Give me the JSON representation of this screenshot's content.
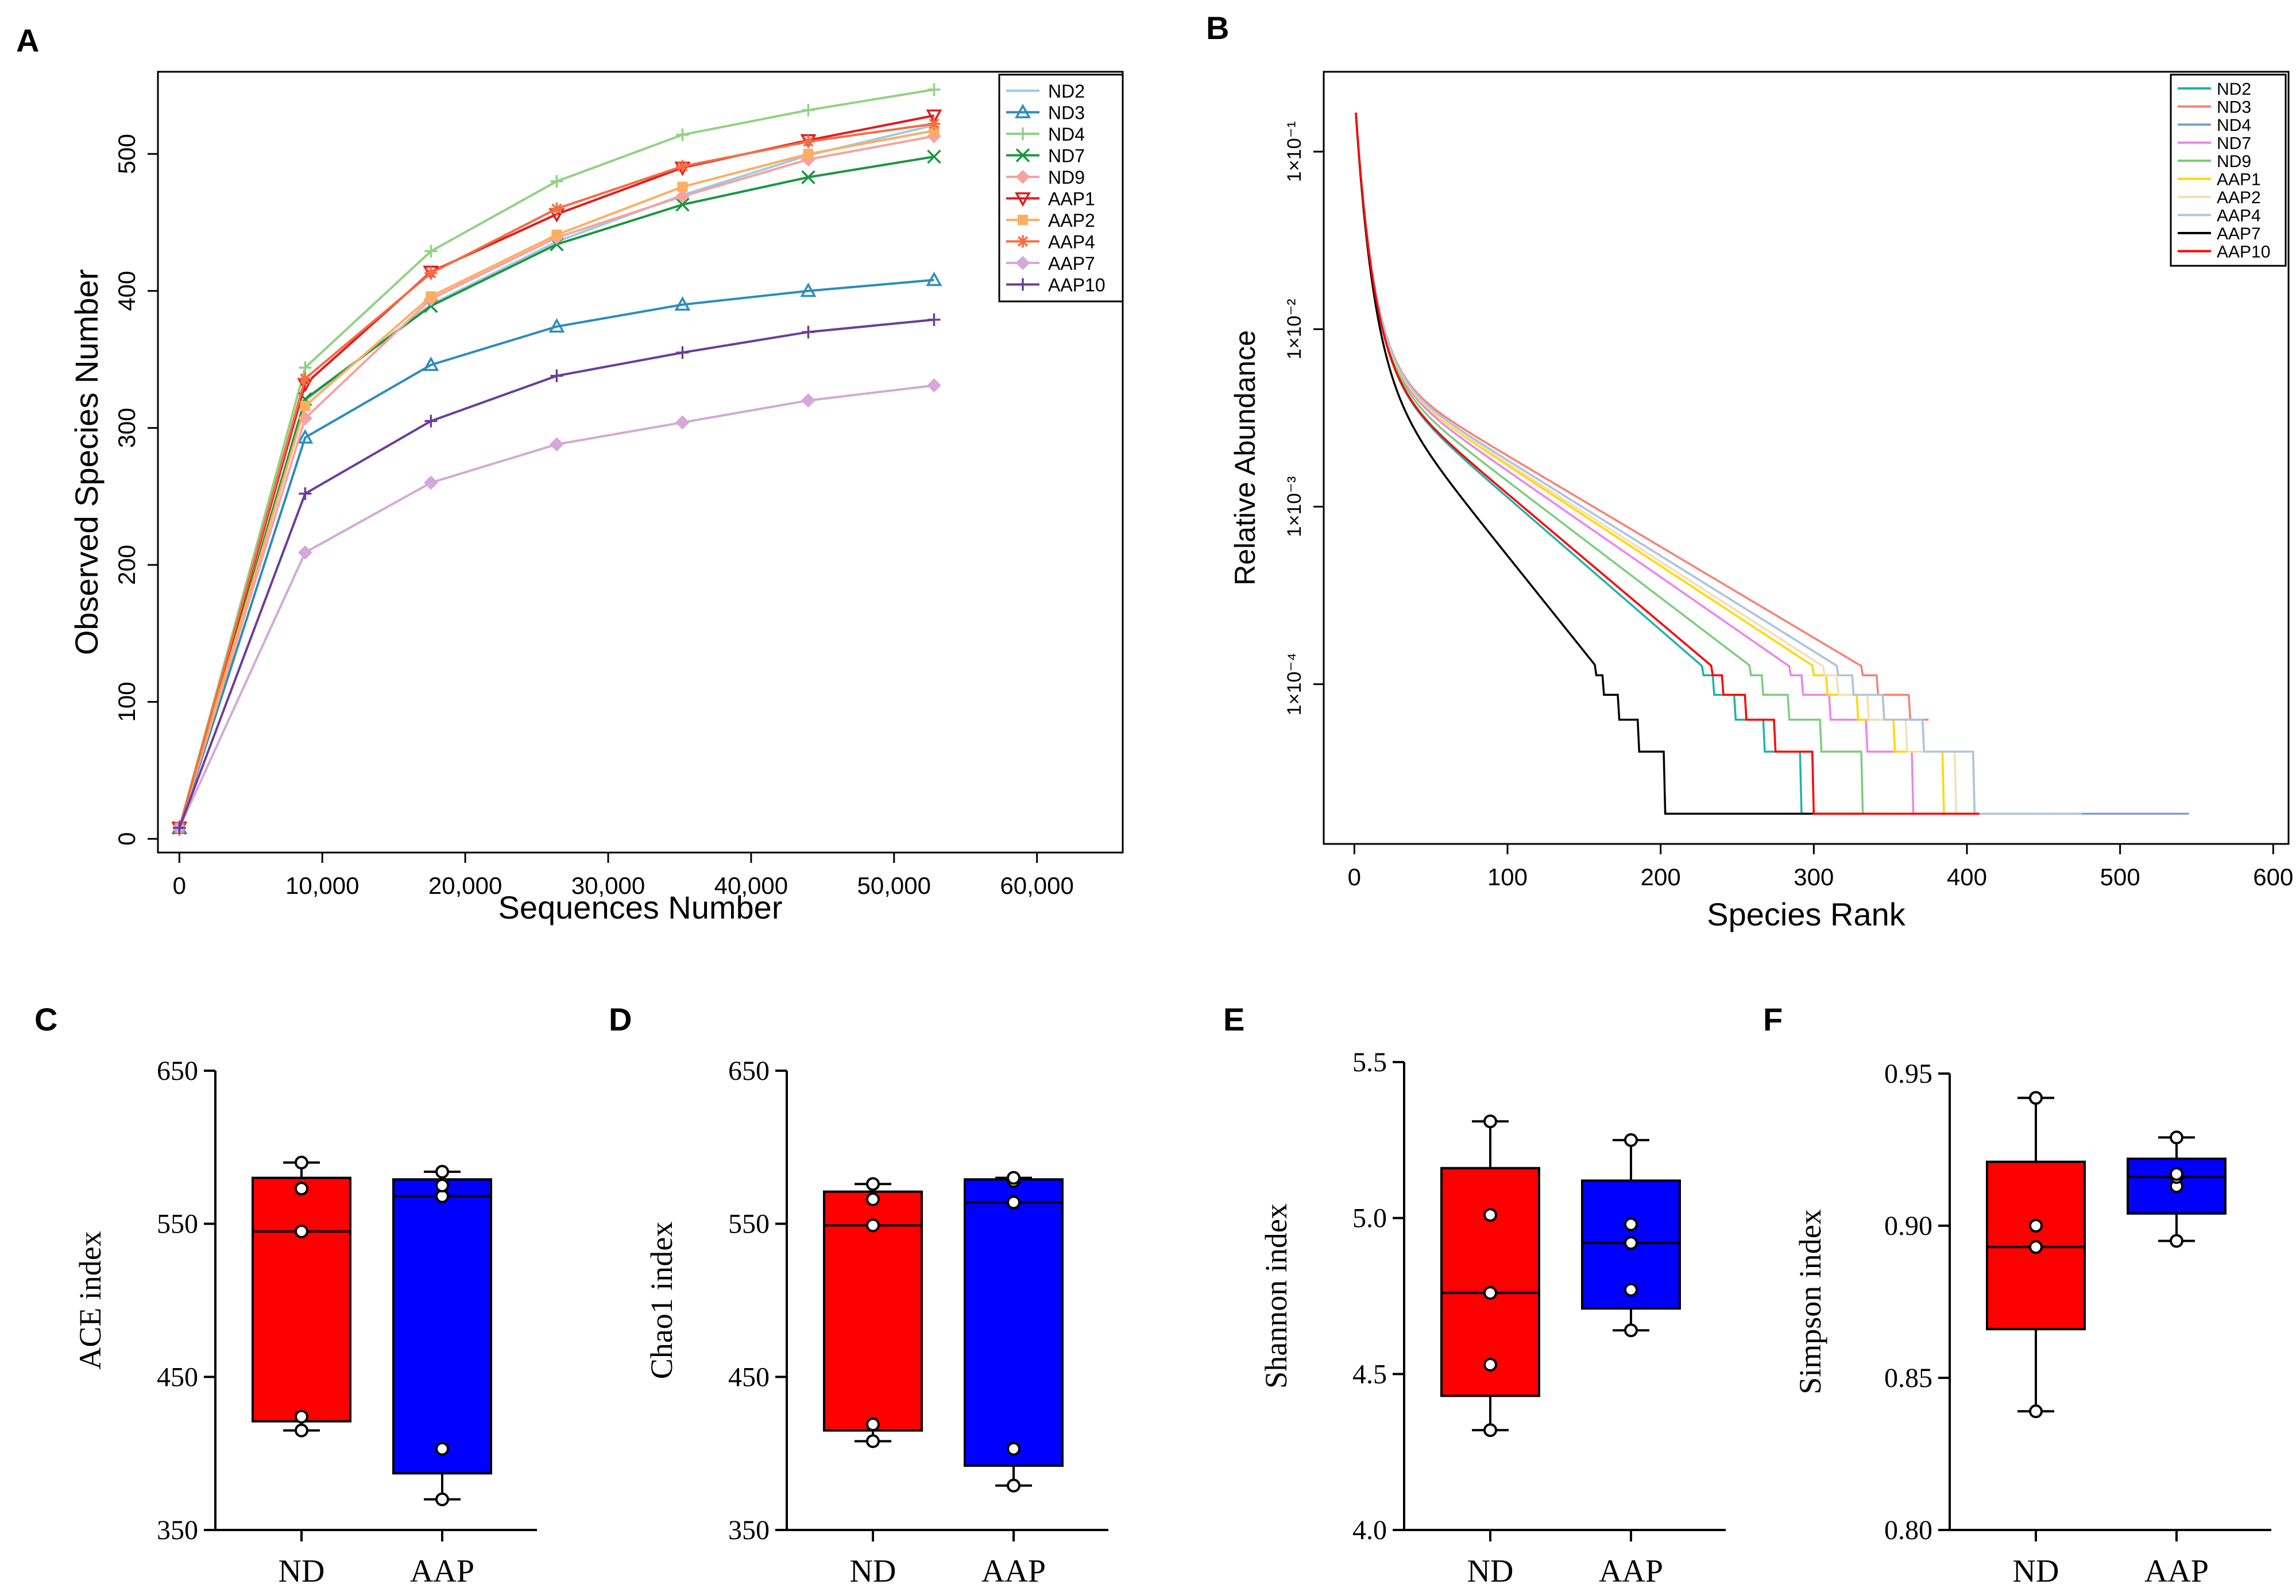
{
  "chart_data": [
    {
      "panel": "A",
      "type": "line",
      "xlabel": "Sequences Number",
      "ylabel": "Observed Species Number",
      "xlim": [
        -1500,
        66000
      ],
      "ylim": [
        -10,
        560
      ],
      "xticks": [
        0,
        10000,
        20000,
        30000,
        40000,
        50000,
        60000
      ],
      "xtick_labels": [
        "0",
        "10,000",
        "20,000",
        "30,000",
        "40,000",
        "50,000",
        "60,000"
      ],
      "yticks": [
        0,
        100,
        200,
        300,
        400,
        500
      ],
      "ytick_labels": [
        "0",
        "100",
        "200",
        "300",
        "400",
        "500"
      ],
      "x": [
        0,
        8800,
        17600,
        26400,
        35200,
        44000,
        52800
      ],
      "series": [
        {
          "name": "ND2",
          "color": "#9ecae1",
          "marker": "none",
          "values": [
            8,
            320,
            390,
            436,
            470,
            499,
            521
          ]
        },
        {
          "name": "ND3",
          "color": "#2b8cbe",
          "marker": "triangle",
          "values": [
            8,
            293,
            346,
            374,
            390,
            400,
            408
          ]
        },
        {
          "name": "ND4",
          "color": "#90d283",
          "marker": "plus",
          "values": [
            8,
            344,
            429,
            480,
            514,
            532,
            547
          ]
        },
        {
          "name": "ND7",
          "color": "#1a9641",
          "marker": "x",
          "values": [
            8,
            321,
            389,
            434,
            463,
            483,
            498
          ]
        },
        {
          "name": "ND9",
          "color": "#f4a3a3",
          "marker": "diamond",
          "values": [
            8,
            307,
            394,
            439,
            469,
            496,
            513
          ]
        },
        {
          "name": "AAP1",
          "color": "#e31a1c",
          "marker": "triangle-down",
          "values": [
            8,
            332,
            414,
            456,
            490,
            510,
            528
          ]
        },
        {
          "name": "AAP2",
          "color": "#fdae61",
          "marker": "square",
          "values": [
            8,
            316,
            396,
            441,
            476,
            500,
            517
          ]
        },
        {
          "name": "AAP4",
          "color": "#f46d43",
          "marker": "star",
          "values": [
            8,
            336,
            413,
            460,
            491,
            509,
            522
          ]
        },
        {
          "name": "AAP7",
          "color": "#d4a8d8",
          "marker": "diamond",
          "values": [
            8,
            209,
            260,
            288,
            304,
            320,
            331
          ]
        },
        {
          "name": "AAP10",
          "color": "#6a3d9a",
          "marker": "plus",
          "values": [
            8,
            252,
            305,
            338,
            355,
            370,
            379
          ]
        }
      ]
    },
    {
      "panel": "B",
      "type": "line",
      "xlabel": "Species Rank",
      "ylabel": "Relative Abundance",
      "yscale": "log",
      "xlim": [
        -20,
        610
      ],
      "ylim_log10": [
        -4.9,
        -0.55
      ],
      "xticks": [
        0,
        100,
        200,
        300,
        400,
        500,
        600
      ],
      "xtick_labels": [
        "0",
        "100",
        "200",
        "300",
        "400",
        "500",
        "600"
      ],
      "yticks_log10": [
        -1,
        -2,
        -3,
        -4
      ],
      "ytick_labels": [
        "1×10⁻¹",
        "1×10⁻²",
        "1×10⁻³",
        "1×10⁻⁴"
      ],
      "series": [
        {
          "name": "ND2",
          "color": "#20b2aa",
          "max_rank": 330,
          "k": 0.72
        },
        {
          "name": "ND3",
          "color": "#fa8072",
          "max_rank": 375,
          "k": 1.05
        },
        {
          "name": "ND4",
          "color": "#7b9fd4",
          "max_rank": 545,
          "k": 1.0
        },
        {
          "name": "ND7",
          "color": "#ee82ee",
          "max_rank": 423,
          "k": 0.9
        },
        {
          "name": "ND9",
          "color": "#7ccd7c",
          "max_rank": 350,
          "k": 0.82
        },
        {
          "name": "AAP1",
          "color": "#ffd700",
          "max_rank": 447,
          "k": 0.95
        },
        {
          "name": "AAP2",
          "color": "#f5deb3",
          "max_rank": 470,
          "k": 0.97
        },
        {
          "name": "AAP4",
          "color": "#b0c4de",
          "max_rank": 475,
          "k": 1.0
        },
        {
          "name": "AAP7",
          "color": "#000000",
          "max_rank": 330,
          "k": 0.5
        },
        {
          "name": "AAP10",
          "color": "#ff0000",
          "max_rank": 408,
          "k": 0.74
        }
      ]
    },
    {
      "panel": "C",
      "type": "box",
      "ylabel": "ACE index",
      "ylim": [
        350,
        650
      ],
      "yticks": [
        350,
        450,
        550,
        650
      ],
      "ytick_labels": [
        "350",
        "450",
        "550",
        "650"
      ],
      "categories": [
        "ND",
        "AAP"
      ],
      "colors": [
        "#ff0000",
        "#0000ff"
      ],
      "boxes": [
        {
          "min": 415,
          "q1": 421,
          "median": 545,
          "q3": 580,
          "max": 590,
          "points": [
            415,
            424,
            545,
            573,
            590
          ]
        },
        {
          "min": 370,
          "q1": 387,
          "median": 568,
          "q3": 579,
          "max": 584,
          "points": [
            370,
            403,
            568,
            575,
            584
          ]
        }
      ]
    },
    {
      "panel": "D",
      "type": "box",
      "ylabel": "Chao1 index",
      "ylim": [
        350,
        650
      ],
      "yticks": [
        350,
        450,
        550,
        650
      ],
      "ytick_labels": [
        "350",
        "450",
        "550",
        "650"
      ],
      "categories": [
        "ND",
        "AAP"
      ],
      "colors": [
        "#ff0000",
        "#0000ff"
      ],
      "boxes": [
        {
          "min": 408,
          "q1": 415,
          "median": 549,
          "q3": 571,
          "max": 576,
          "points": [
            408,
            419,
            549,
            566,
            576
          ]
        },
        {
          "min": 379,
          "q1": 392,
          "median": 564,
          "q3": 579,
          "max": 580,
          "points": [
            379,
            403,
            564,
            578,
            580
          ]
        }
      ]
    },
    {
      "panel": "E",
      "type": "box",
      "ylabel": "Shannon index",
      "ylim": [
        4.0,
        5.5
      ],
      "yticks": [
        4.0,
        4.5,
        5.0,
        5.5
      ],
      "ytick_labels": [
        "4.0",
        "4.5",
        "5.0",
        "5.5"
      ],
      "categories": [
        "ND",
        "AAP"
      ],
      "colors": [
        "#ff0000",
        "#0000ff"
      ],
      "boxes": [
        {
          "min": 4.32,
          "q1": 4.43,
          "median": 4.76,
          "q3": 5.16,
          "max": 5.31,
          "points": [
            4.32,
            4.53,
            4.76,
            5.01,
            5.31
          ]
        },
        {
          "min": 4.64,
          "q1": 4.71,
          "median": 4.92,
          "q3": 5.12,
          "max": 5.25,
          "points": [
            4.64,
            4.77,
            4.92,
            4.98,
            5.25
          ]
        }
      ]
    },
    {
      "panel": "F",
      "type": "box",
      "ylabel": "Simpson index",
      "ylim": [
        0.8,
        0.95
      ],
      "yticks": [
        0.8,
        0.85,
        0.9,
        0.95
      ],
      "ytick_labels": [
        "0.80",
        "0.85",
        "0.90",
        "0.95"
      ],
      "categories": [
        "ND",
        "AAP"
      ],
      "colors": [
        "#ff0000",
        "#0000ff"
      ],
      "boxes": [
        {
          "min": 0.839,
          "q1": 0.866,
          "median": 0.893,
          "q3": 0.921,
          "max": 0.942,
          "points": [
            0.839,
            0.893,
            0.893,
            0.9,
            0.942
          ]
        },
        {
          "min": 0.895,
          "q1": 0.904,
          "median": 0.916,
          "q3": 0.922,
          "max": 0.929,
          "points": [
            0.895,
            0.913,
            0.916,
            0.917,
            0.929
          ]
        }
      ]
    }
  ],
  "panel_labels": [
    "A",
    "B",
    "C",
    "D",
    "E",
    "F"
  ]
}
